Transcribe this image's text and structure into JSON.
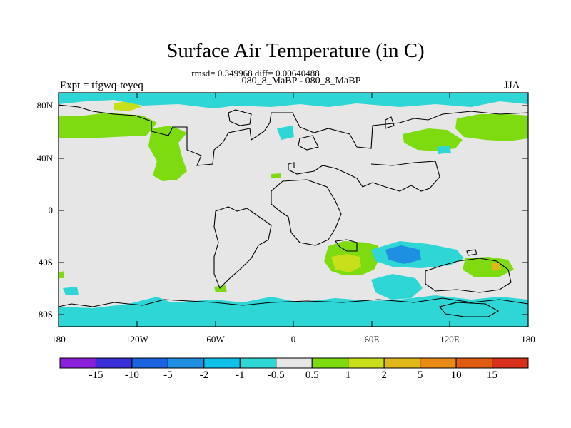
{
  "title": "Surface Air Temperature (in C)",
  "stats": "rmsd= 0.349968 diff= 0.00640488",
  "subtitle": "080_8_MaBP - 080_8_MaBP",
  "experiment": "Expt = tfgwq-teyeq",
  "season": "JJA",
  "lat_ticks": [
    "80N",
    "40N",
    "0",
    "40S",
    "80S"
  ],
  "lon_ticks": [
    "180",
    "120W",
    "60W",
    "0",
    "60E",
    "120E",
    "180"
  ],
  "colorbar": {
    "labels": [
      "-15",
      "-10",
      "-5",
      "-2",
      "-1",
      "-0.5",
      "0.5",
      "1",
      "2",
      "5",
      "10",
      "15"
    ],
    "colors": [
      "#8a1fdc",
      "#3a2fd6",
      "#1b64e0",
      "#1f8fe2",
      "#0fc0e8",
      "#2fd6d6",
      "#e6e6e6",
      "#7ddb10",
      "#c8e01a",
      "#e0b81a",
      "#e88a14",
      "#e05c10",
      "#d8301a"
    ]
  }
}
